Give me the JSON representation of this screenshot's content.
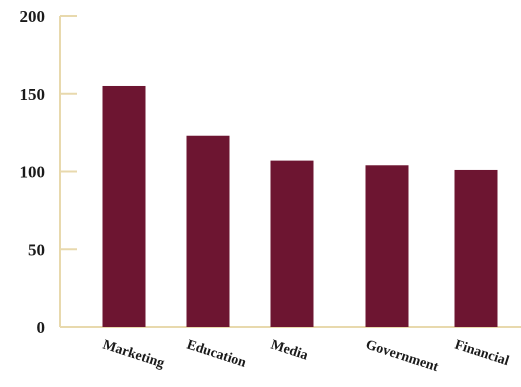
{
  "chart_data": {
    "type": "bar",
    "categories": [
      "Marketing",
      "Education",
      "Media",
      "Government",
      "Financial"
    ],
    "values": [
      155,
      123,
      107,
      104,
      101
    ],
    "title": "",
    "xlabel": "",
    "ylabel": "",
    "ylim": [
      0,
      200
    ],
    "yticks": [
      0,
      50,
      100,
      150,
      200
    ],
    "grid": false,
    "legend": "none",
    "colors": {
      "bar": "#6d1531",
      "axis": "#e8d9ad",
      "text": "#1a1a1a"
    }
  }
}
